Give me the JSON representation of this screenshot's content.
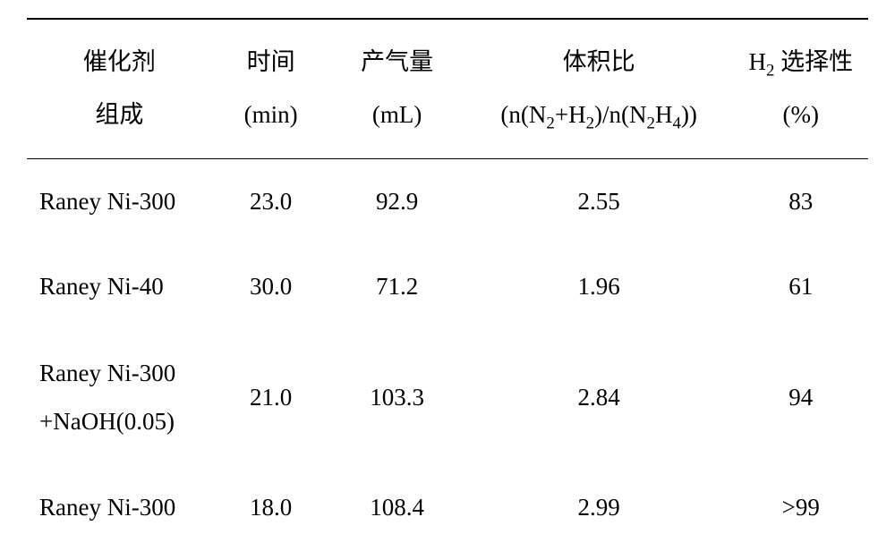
{
  "table": {
    "columns": {
      "catalyst": {
        "line1": "催化剂",
        "line2": "组成"
      },
      "time": {
        "line1": "时间",
        "line2": "(min)"
      },
      "gas": {
        "line1": "产气量",
        "line2": "(mL)"
      },
      "ratio": {
        "line1": "体积比",
        "line2_prefix": "(n(N",
        "line2_sub1": "2",
        "line2_mid1": "+H",
        "line2_sub2": "2",
        "line2_mid2": ")/n(N",
        "line2_sub3": "2",
        "line2_mid3": "H",
        "line2_sub4": "4",
        "line2_suffix": "))"
      },
      "selectivity": {
        "line1_pre": "H",
        "line1_sub": "2",
        "line1_post": " 选择性",
        "line2": "(%)"
      }
    },
    "rows": [
      {
        "catalyst": "Raney Ni-300",
        "time": "23.0",
        "gas": "92.9",
        "ratio": "2.55",
        "selectivity": "83"
      },
      {
        "catalyst": "Raney Ni-40",
        "time": "30.0",
        "gas": "71.2",
        "ratio": "1.96",
        "selectivity": "61"
      },
      {
        "catalyst_line1": "Raney Ni-300",
        "catalyst_line2": "+NaOH(0.05)",
        "time": "21.0",
        "gas": "103.3",
        "ratio": "2.84",
        "selectivity": "94"
      },
      {
        "catalyst": "Raney Ni-300",
        "time": "18.0",
        "gas": "108.4",
        "ratio": "2.99",
        "selectivity": ">99"
      }
    ],
    "styling": {
      "font_size": 27,
      "border_color": "#000000",
      "background_color": "#ffffff",
      "text_color": "#000000"
    }
  }
}
